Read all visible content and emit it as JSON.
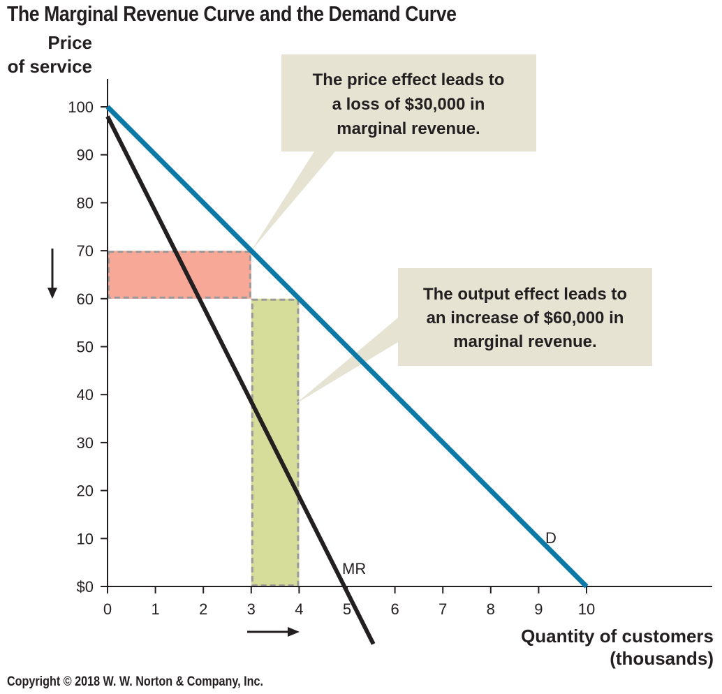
{
  "title": "The Marginal Revenue Curve and the Demand Curve",
  "copyright": "Copyright © 2018 W. W. Norton & Company, Inc.",
  "chart_data": {
    "type": "line",
    "ylabel": [
      "Price",
      "of service"
    ],
    "xlabel": [
      "Quantity of customers",
      "(thousands)"
    ],
    "xlim": [
      0,
      12.6
    ],
    "ylim": [
      0,
      105
    ],
    "x_ticks": [
      "0",
      "1",
      "2",
      "3",
      "4",
      "5",
      "6",
      "7",
      "8",
      "9",
      "10"
    ],
    "y_ticks": [
      "$0",
      "10",
      "20",
      "30",
      "40",
      "50",
      "60",
      "70",
      "80",
      "90",
      "100"
    ],
    "series": [
      {
        "name": "D",
        "color": "#0b79a8",
        "x": [
          0,
          10
        ],
        "y": [
          100,
          0
        ]
      },
      {
        "name": "MR",
        "color": "#231f20",
        "x": [
          0,
          5.55
        ],
        "y": [
          98,
          -12
        ]
      }
    ],
    "regions": [
      {
        "label": "price effect",
        "x": [
          0,
          3
        ],
        "y": [
          60,
          70
        ],
        "color": "#f7a897"
      },
      {
        "label": "output effect",
        "x": [
          3,
          4
        ],
        "y": [
          0,
          60
        ],
        "color": "#d6dc9a"
      }
    ],
    "arrows": [
      {
        "direction": "down",
        "meaning": "price falls from 70 to 60"
      },
      {
        "direction": "right",
        "meaning": "quantity rises from 3 to 4"
      }
    ],
    "annotations": [
      {
        "lines": [
          "The price effect leads to",
          "a loss of $30,000 in",
          "marginal revenue."
        ],
        "points_to": [
          3,
          70
        ]
      },
      {
        "lines": [
          "The output effect leads to",
          "an increase of $60,000 in",
          "marginal revenue."
        ],
        "points_to": [
          4,
          38
        ]
      }
    ],
    "callout_color": "#e6e3d3",
    "grid": false,
    "legend": "none"
  }
}
